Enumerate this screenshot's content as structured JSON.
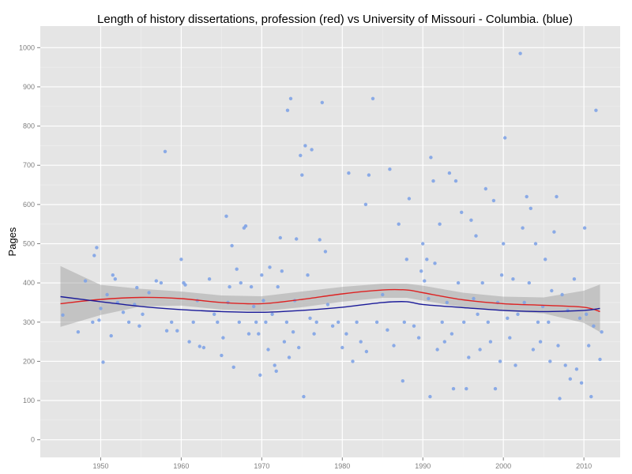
{
  "chart_data": {
    "type": "scatter",
    "title": "Length of history dissertations, profession (red) vs University of Missouri - Columbia. (blue)",
    "xlabel": "",
    "ylabel": "Pages",
    "xlim": [
      1942.5,
      2014.5
    ],
    "ylim": [
      -45,
      1055
    ],
    "x_ticks": [
      1950,
      1960,
      1970,
      1980,
      1990,
      2000,
      2010
    ],
    "y_ticks": [
      0,
      100,
      200,
      300,
      400,
      500,
      600,
      700,
      800,
      900,
      1000
    ],
    "grid": true,
    "legend": "none",
    "colors": {
      "panel_background": "#e5e5e5",
      "grid_major": "#ffffff",
      "grid_minor": "#f0f0f0",
      "points": "#7fa3e6",
      "confidence_band": "#999999",
      "profession_line": "#dd2222",
      "missouri_line": "#1a1a99"
    },
    "series": [
      {
        "type": "scatter",
        "points": [
          [
            1945.3,
            318
          ],
          [
            1947.2,
            275
          ],
          [
            1948.1,
            405
          ],
          [
            1949.0,
            300
          ],
          [
            1949.2,
            470
          ],
          [
            1949.5,
            490
          ],
          [
            1949.8,
            305
          ],
          [
            1950.0,
            335
          ],
          [
            1950.3,
            198
          ],
          [
            1950.8,
            370
          ],
          [
            1951.3,
            265
          ],
          [
            1951.5,
            420
          ],
          [
            1951.8,
            410
          ],
          [
            1952.1,
            350
          ],
          [
            1952.8,
            325
          ],
          [
            1953.5,
            300
          ],
          [
            1954.2,
            345
          ],
          [
            1954.5,
            388
          ],
          [
            1954.8,
            290
          ],
          [
            1955.2,
            320
          ],
          [
            1956.0,
            375
          ],
          [
            1956.9,
            405
          ],
          [
            1957.5,
            400
          ],
          [
            1958.0,
            735
          ],
          [
            1958.2,
            278
          ],
          [
            1958.8,
            300
          ],
          [
            1959.5,
            278
          ],
          [
            1960.0,
            460
          ],
          [
            1960.3,
            400
          ],
          [
            1960.5,
            395
          ],
          [
            1961.0,
            250
          ],
          [
            1961.5,
            300
          ],
          [
            1962.0,
            355
          ],
          [
            1962.3,
            238
          ],
          [
            1962.8,
            235
          ],
          [
            1963.5,
            410
          ],
          [
            1964.1,
            320
          ],
          [
            1964.5,
            300
          ],
          [
            1965.0,
            215
          ],
          [
            1965.2,
            260
          ],
          [
            1965.6,
            570
          ],
          [
            1965.8,
            350
          ],
          [
            1966.0,
            390
          ],
          [
            1966.3,
            495
          ],
          [
            1966.5,
            185
          ],
          [
            1966.9,
            435
          ],
          [
            1967.2,
            300
          ],
          [
            1967.4,
            400
          ],
          [
            1967.8,
            540
          ],
          [
            1968.0,
            545
          ],
          [
            1968.4,
            270
          ],
          [
            1968.7,
            390
          ],
          [
            1969.0,
            340
          ],
          [
            1969.3,
            300
          ],
          [
            1969.6,
            270
          ],
          [
            1969.8,
            165
          ],
          [
            1970.0,
            420
          ],
          [
            1970.2,
            355
          ],
          [
            1970.5,
            300
          ],
          [
            1970.8,
            230
          ],
          [
            1971.0,
            440
          ],
          [
            1971.3,
            320
          ],
          [
            1971.6,
            190
          ],
          [
            1971.8,
            175
          ],
          [
            1972.0,
            390
          ],
          [
            1972.3,
            515
          ],
          [
            1972.5,
            430
          ],
          [
            1972.8,
            250
          ],
          [
            1973.1,
            300
          ],
          [
            1973.2,
            840
          ],
          [
            1973.4,
            210
          ],
          [
            1973.6,
            870
          ],
          [
            1973.9,
            275
          ],
          [
            1974.1,
            355
          ],
          [
            1974.3,
            512
          ],
          [
            1974.6,
            235
          ],
          [
            1974.8,
            725
          ],
          [
            1975.0,
            675
          ],
          [
            1975.2,
            110
          ],
          [
            1975.4,
            750
          ],
          [
            1975.7,
            420
          ],
          [
            1976.0,
            310
          ],
          [
            1976.2,
            740
          ],
          [
            1976.5,
            270
          ],
          [
            1976.8,
            300
          ],
          [
            1977.2,
            510
          ],
          [
            1977.5,
            860
          ],
          [
            1977.9,
            480
          ],
          [
            1978.2,
            345
          ],
          [
            1978.8,
            290
          ],
          [
            1979.5,
            300
          ],
          [
            1980.0,
            235
          ],
          [
            1980.5,
            270
          ],
          [
            1980.8,
            680
          ],
          [
            1981.3,
            200
          ],
          [
            1981.8,
            300
          ],
          [
            1982.3,
            250
          ],
          [
            1982.9,
            600
          ],
          [
            1983.0,
            225
          ],
          [
            1983.3,
            675
          ],
          [
            1983.8,
            870
          ],
          [
            1984.3,
            300
          ],
          [
            1985.0,
            370
          ],
          [
            1985.6,
            280
          ],
          [
            1985.9,
            690
          ],
          [
            1986.4,
            240
          ],
          [
            1987.0,
            550
          ],
          [
            1987.5,
            150
          ],
          [
            1987.7,
            300
          ],
          [
            1988.0,
            460
          ],
          [
            1988.3,
            615
          ],
          [
            1988.9,
            290
          ],
          [
            1989.5,
            260
          ],
          [
            1989.8,
            430
          ],
          [
            1990.0,
            500
          ],
          [
            1990.2,
            405
          ],
          [
            1990.5,
            460
          ],
          [
            1990.7,
            360
          ],
          [
            1990.9,
            110
          ],
          [
            1991.0,
            720
          ],
          [
            1991.3,
            660
          ],
          [
            1991.5,
            450
          ],
          [
            1991.8,
            230
          ],
          [
            1992.1,
            550
          ],
          [
            1992.4,
            300
          ],
          [
            1992.7,
            250
          ],
          [
            1993.0,
            350
          ],
          [
            1993.3,
            680
          ],
          [
            1993.6,
            270
          ],
          [
            1993.8,
            130
          ],
          [
            1994.1,
            660
          ],
          [
            1994.4,
            400
          ],
          [
            1994.8,
            580
          ],
          [
            1995.1,
            300
          ],
          [
            1995.4,
            130
          ],
          [
            1995.7,
            210
          ],
          [
            1996.0,
            560
          ],
          [
            1996.3,
            360
          ],
          [
            1996.6,
            520
          ],
          [
            1996.8,
            320
          ],
          [
            1997.1,
            230
          ],
          [
            1997.4,
            400
          ],
          [
            1997.8,
            640
          ],
          [
            1998.1,
            300
          ],
          [
            1998.4,
            250
          ],
          [
            1998.8,
            610
          ],
          [
            1999.0,
            130
          ],
          [
            1999.3,
            350
          ],
          [
            1999.6,
            200
          ],
          [
            1999.8,
            420
          ],
          [
            2000.0,
            500
          ],
          [
            2000.2,
            770
          ],
          [
            2000.5,
            310
          ],
          [
            2000.8,
            260
          ],
          [
            2001.2,
            410
          ],
          [
            2001.5,
            190
          ],
          [
            2001.8,
            320
          ],
          [
            2002.1,
            985
          ],
          [
            2002.4,
            540
          ],
          [
            2002.6,
            350
          ],
          [
            2002.9,
            620
          ],
          [
            2003.2,
            400
          ],
          [
            2003.4,
            590
          ],
          [
            2003.7,
            230
          ],
          [
            2004.0,
            500
          ],
          [
            2004.3,
            300
          ],
          [
            2004.6,
            250
          ],
          [
            2004.9,
            340
          ],
          [
            2005.2,
            460
          ],
          [
            2005.6,
            300
          ],
          [
            2005.8,
            200
          ],
          [
            2006.0,
            380
          ],
          [
            2006.3,
            530
          ],
          [
            2006.6,
            620
          ],
          [
            2006.8,
            240
          ],
          [
            2007.0,
            105
          ],
          [
            2007.3,
            370
          ],
          [
            2007.7,
            190
          ],
          [
            2008.0,
            330
          ],
          [
            2008.3,
            155
          ],
          [
            2008.8,
            410
          ],
          [
            2009.1,
            180
          ],
          [
            2009.5,
            310
          ],
          [
            2009.7,
            145
          ],
          [
            2010.1,
            540
          ],
          [
            2010.3,
            320
          ],
          [
            2010.6,
            240
          ],
          [
            2010.9,
            110
          ],
          [
            2011.2,
            290
          ],
          [
            2011.5,
            840
          ],
          [
            2012.0,
            205
          ],
          [
            2012.2,
            275
          ]
        ]
      },
      {
        "type": "line",
        "color": "#dd2222",
        "x": [
          1945,
          1950,
          1955,
          1960,
          1965,
          1970,
          1975,
          1980,
          1985,
          1988,
          1990,
          1995,
          2000,
          2005,
          2010,
          2012
        ],
        "y": [
          347,
          358,
          363,
          360,
          350,
          347,
          358,
          372,
          382,
          382,
          375,
          357,
          347,
          343,
          338,
          327
        ]
      },
      {
        "type": "line",
        "color": "#1a1a99",
        "x": [
          1945,
          1950,
          1955,
          1960,
          1965,
          1970,
          1975,
          1980,
          1985,
          1988,
          1990,
          1995,
          2000,
          2005,
          2010,
          2012
        ],
        "y": [
          365,
          352,
          340,
          332,
          327,
          325,
          330,
          338,
          350,
          352,
          345,
          337,
          330,
          327,
          330,
          335
        ]
      },
      {
        "type": "band",
        "x": [
          1945,
          1950,
          1955,
          1960,
          1965,
          1970,
          1975,
          1980,
          1985,
          1988,
          1990,
          1995,
          2000,
          2005,
          2010,
          2012
        ],
        "upper": [
          443,
          395,
          385,
          378,
          368,
          366,
          378,
          390,
          398,
          398,
          393,
          375,
          365,
          363,
          380,
          396
        ],
        "lower": [
          288,
          318,
          340,
          342,
          332,
          328,
          338,
          352,
          362,
          362,
          355,
          338,
          328,
          322,
          298,
          275
        ]
      }
    ]
  }
}
